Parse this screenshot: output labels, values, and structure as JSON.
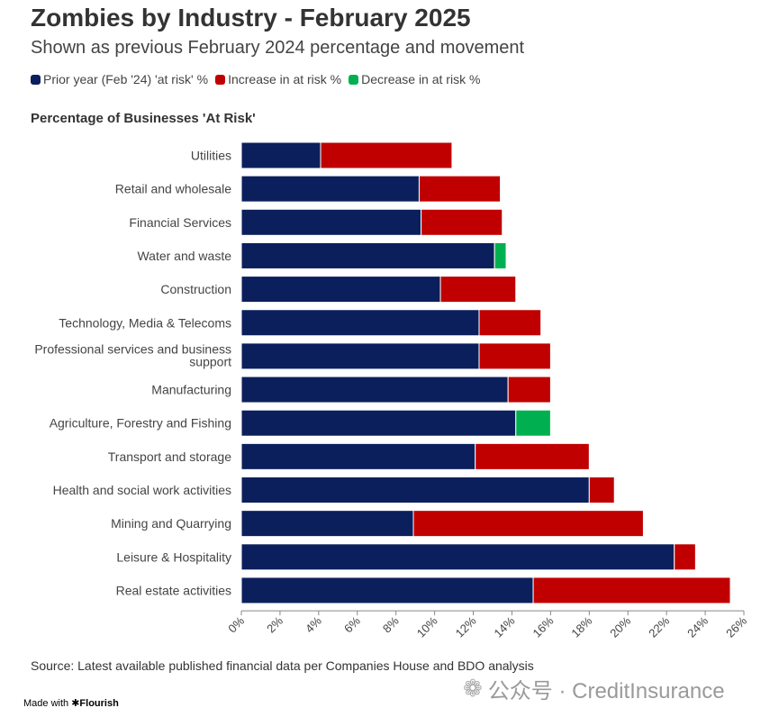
{
  "title": "Zombies by Industry - February 2025",
  "subtitle": "Shown as previous February 2024 percentage and movement",
  "legend": [
    {
      "label": "Prior year (Feb '24) 'at risk' %",
      "color": "#0b1f5c"
    },
    {
      "label": "Increase in at risk %",
      "color": "#c00000"
    },
    {
      "label": "Decrease in at risk %",
      "color": "#00b050"
    }
  ],
  "chart_title": "Percentage of Businesses 'At Risk'",
  "source": "Source: Latest available published financial data per Companies House and BDO analysis",
  "made_with": "Made with",
  "made_with_brand": "Flourish",
  "watermark": "公众号 · CreditInsurance",
  "colors": {
    "prior": "#0b1f5c",
    "increase": "#c00000",
    "decrease": "#00b050"
  },
  "chart_data": {
    "type": "bar",
    "orientation": "horizontal",
    "stacked": true,
    "title": "Percentage of Businesses 'At Risk'",
    "categories": [
      "Utilities",
      "Retail and wholesale",
      "Financial Services",
      "Water and waste",
      "Construction",
      "Technology, Media & Telecoms",
      "Professional services and business support",
      "Manufacturing",
      "Agriculture, Forestry and Fishing",
      "Transport and storage",
      "Health and social work activities",
      "Mining and Quarrying",
      "Leisure & Hospitality",
      "Real estate activities"
    ],
    "series": [
      {
        "name": "Prior year (Feb '24) 'at risk' %",
        "values": [
          4.1,
          9.2,
          9.3,
          13.7,
          10.3,
          12.3,
          12.3,
          13.8,
          16.0,
          12.1,
          18.0,
          8.9,
          22.4,
          15.1
        ]
      },
      {
        "name": "Increase in at risk %",
        "values": [
          6.8,
          4.2,
          4.2,
          0,
          3.9,
          3.2,
          3.7,
          2.2,
          0,
          5.9,
          1.3,
          11.9,
          1.1,
          10.2
        ]
      },
      {
        "name": "Decrease in at risk %",
        "values": [
          0,
          0,
          0,
          0.6,
          0,
          0,
          0,
          0,
          1.8,
          0,
          0,
          0,
          0,
          0
        ]
      }
    ],
    "xlim": [
      0,
      26
    ],
    "xticks": [
      "0%",
      "2%",
      "4%",
      "6%",
      "8%",
      "10%",
      "12%",
      "14%",
      "16%",
      "18%",
      "20%",
      "22%",
      "24%",
      "26%"
    ]
  }
}
